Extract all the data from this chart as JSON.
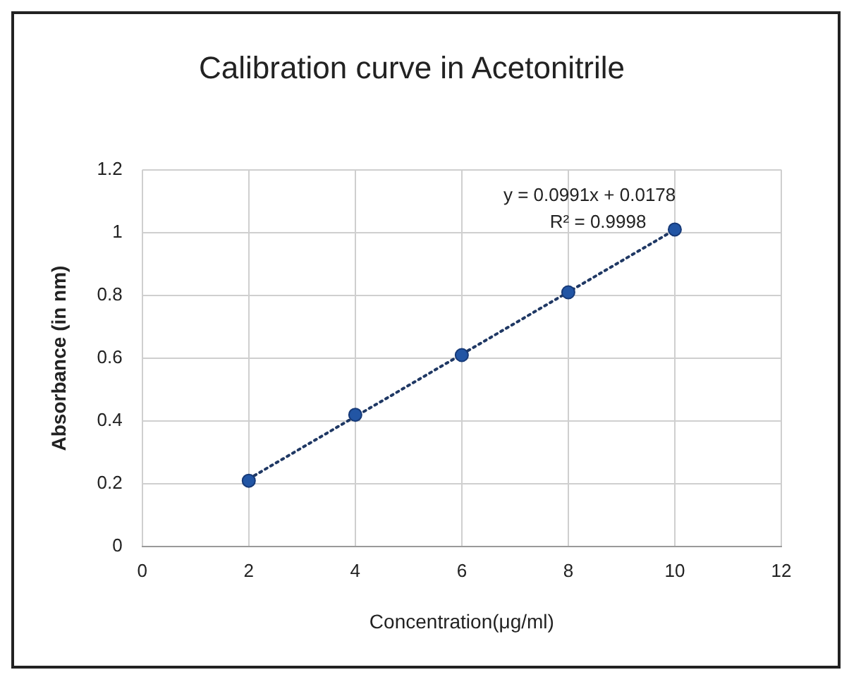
{
  "chart_data": {
    "type": "scatter",
    "title": "Calibration curve in Acetonitrile",
    "xlabel": "Concentration(μg/ml)",
    "ylabel": "Absorbance (in nm)",
    "annotations": [
      "y = 0.0991x + 0.0178",
      "R² = 0.9998"
    ],
    "series": [
      {
        "type": "scatter",
        "color": "#2255a4",
        "marker": "circle",
        "x": [
          2,
          4,
          6,
          8,
          10
        ],
        "values": [
          0.21,
          0.42,
          0.61,
          0.81,
          1.01
        ]
      },
      {
        "type": "line",
        "color": "#1f3864",
        "marker": "none",
        "line_style": "dotted",
        "x": [
          2,
          10
        ],
        "values": [
          0.216,
          1.009
        ]
      }
    ],
    "xlim": [
      0,
      12
    ],
    "xticks": [
      0,
      2,
      4,
      6,
      8,
      10,
      12
    ],
    "ylim": [
      0,
      1.2
    ],
    "yticks": [
      0,
      0.2,
      0.4,
      0.6,
      0.8,
      1,
      1.2
    ],
    "grid": true
  }
}
